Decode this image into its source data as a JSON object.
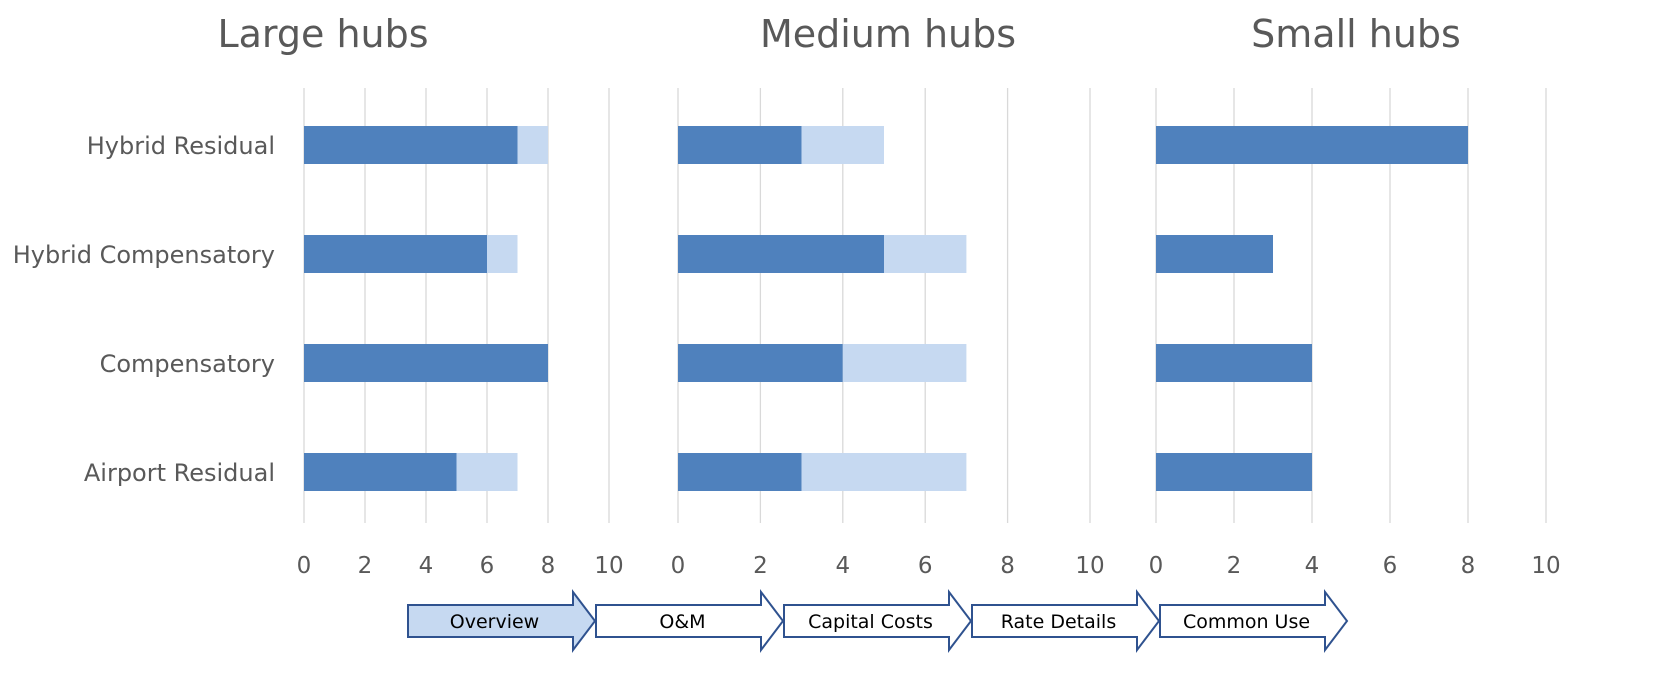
{
  "chart_data": [
    {
      "type": "bar",
      "orientation": "horizontal",
      "stacked": true,
      "title": "Large hubs",
      "categories": [
        "Hybrid Residual",
        "Hybrid Compensatory",
        "Compensatory",
        "Airport Residual"
      ],
      "series": [
        {
          "values": [
            7,
            6,
            8,
            5
          ]
        },
        {
          "values": [
            1,
            1,
            0,
            2
          ]
        }
      ],
      "xlim": [
        0,
        10
      ],
      "xticks": [
        "0",
        "2",
        "4",
        "6",
        "8",
        "10"
      ],
      "grid": "vertical"
    },
    {
      "type": "bar",
      "orientation": "horizontal",
      "stacked": true,
      "title": "Medium hubs",
      "categories": [
        "Hybrid Residual",
        "Hybrid Compensatory",
        "Compensatory",
        "Airport Residual"
      ],
      "series": [
        {
          "values": [
            3,
            5,
            4,
            3
          ]
        },
        {
          "values": [
            2,
            2,
            3,
            4
          ]
        }
      ],
      "xlim": [
        0,
        10
      ],
      "xticks": [
        "0",
        "2",
        "4",
        "6",
        "8",
        "10"
      ],
      "grid": "vertical"
    },
    {
      "type": "bar",
      "orientation": "horizontal",
      "stacked": true,
      "title": "Small hubs",
      "categories": [
        "Hybrid Residual",
        "Hybrid Compensatory",
        "Compensatory",
        "Airport Residual"
      ],
      "series": [
        {
          "values": [
            8,
            3,
            4,
            4
          ]
        },
        {
          "values": [
            0,
            0,
            0,
            0
          ]
        }
      ],
      "xlim": [
        0,
        10
      ],
      "xticks": [
        "0",
        "2",
        "4",
        "6",
        "8",
        "10"
      ],
      "grid": "vertical"
    }
  ],
  "colors": {
    "series_dark": "#4f81bd",
    "series_light": "#c6d9f1",
    "grid": "#d9d9d9",
    "nav_active_fill": "#c6d9f1",
    "nav_stroke": "#2f528f"
  },
  "nav": {
    "items": [
      "Overview",
      "O&M",
      "Capital Costs",
      "Rate Details",
      "Common Use"
    ],
    "active": "Overview"
  }
}
